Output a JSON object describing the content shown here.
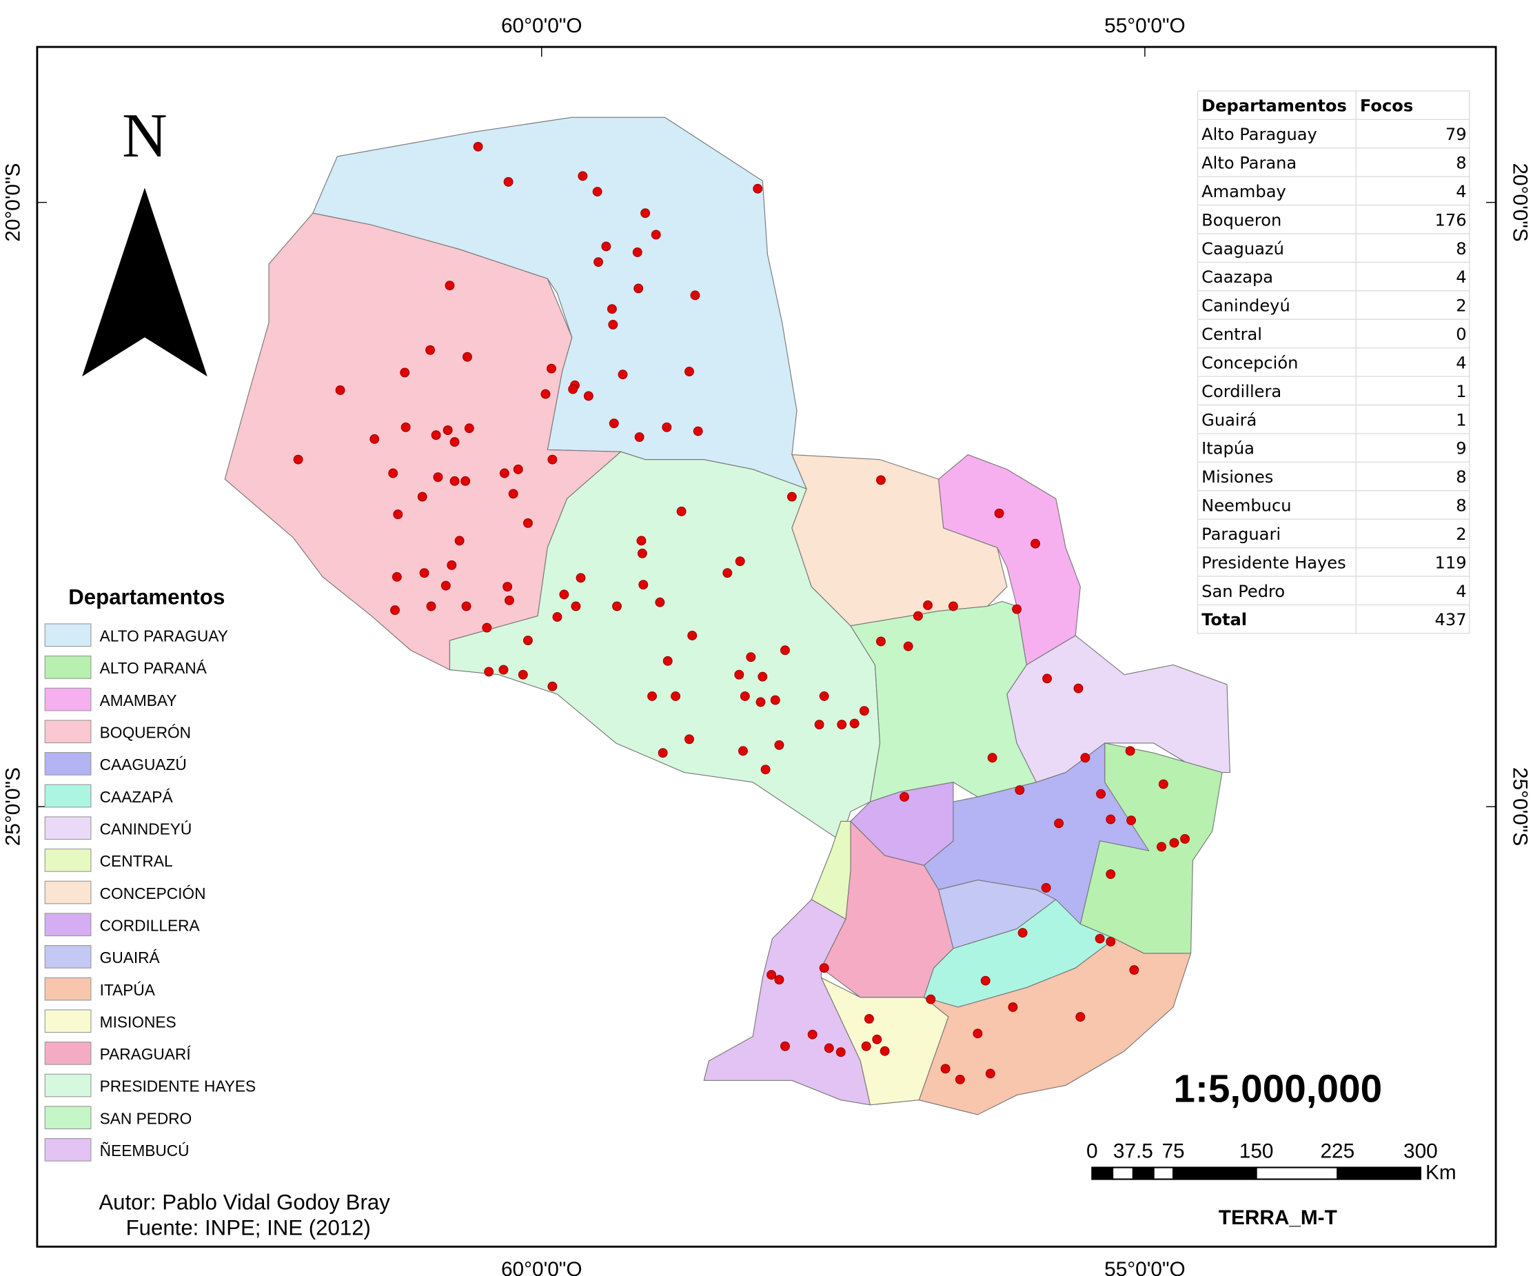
{
  "graticule": {
    "longitude_labels": [
      "60°0'0\"O",
      "55°0'0\"O"
    ],
    "latitude_labels": [
      "20°0'0\"S",
      "25°0'0\"S"
    ]
  },
  "north_label": "N",
  "legend": {
    "title": "Departamentos",
    "items": [
      {
        "label": "ALTO PARAGUAY",
        "color": "#d4ebf8"
      },
      {
        "label": "ALTO PARANÁ",
        "color": "#b8f0b0"
      },
      {
        "label": "AMAMBAY",
        "color": "#f7b0ef"
      },
      {
        "label": "BOQUERÓN",
        "color": "#f9c8d0"
      },
      {
        "label": "CAAGUAZÚ",
        "color": "#b4b3f3"
      },
      {
        "label": "CAAZAPÁ",
        "color": "#adf5e3"
      },
      {
        "label": "CANINDEYÚ",
        "color": "#eadaf8"
      },
      {
        "label": "CENTRAL",
        "color": "#e6f9c0"
      },
      {
        "label": "CONCEPCIÓN",
        "color": "#fbe4d1"
      },
      {
        "label": "CORDILLERA",
        "color": "#d5adf3"
      },
      {
        "label": "GUAIRÁ",
        "color": "#c3c8f5"
      },
      {
        "label": "ITAPÚA",
        "color": "#f8c5ad"
      },
      {
        "label": "MISIONES",
        "color": "#fafad0"
      },
      {
        "label": "PARAGUARÍ",
        "color": "#f5abc4"
      },
      {
        "label": "PRESIDENTE HAYES",
        "color": "#d6f8df"
      },
      {
        "label": "SAN PEDRO",
        "color": "#c4f6c8"
      },
      {
        "label": "ÑEEMBUCÚ",
        "color": "#e3c3f3"
      }
    ]
  },
  "table": {
    "header": [
      "Departamentos",
      "Focos"
    ],
    "rows": [
      [
        "Alto Paraguay",
        79
      ],
      [
        "Alto Parana",
        8
      ],
      [
        "Amambay",
        4
      ],
      [
        "Boqueron",
        176
      ],
      [
        "Caaguazú",
        8
      ],
      [
        "Caazapa",
        4
      ],
      [
        "Canindeyú",
        2
      ],
      [
        "Central",
        0
      ],
      [
        "Concepción",
        4
      ],
      [
        "Cordillera",
        1
      ],
      [
        "Guairá",
        1
      ],
      [
        "Itapúa",
        9
      ],
      [
        "Misiones",
        8
      ],
      [
        "Neembucu",
        8
      ],
      [
        "Paraguari",
        2
      ],
      [
        "Presidente Hayes",
        119
      ],
      [
        "San Pedro",
        4
      ]
    ],
    "total": [
      "Total",
      437
    ]
  },
  "scale": {
    "ratio": "1:5,000,000",
    "ticks": [
      "0",
      "37.5",
      "75",
      "150",
      "225",
      "300"
    ],
    "unit": "Km"
  },
  "satellite": "TERRA_M-T",
  "credits": {
    "author": "Autor: Pablo Vidal Godoy Bray",
    "source": "Fuente: INPE; INE (2012)"
  }
}
